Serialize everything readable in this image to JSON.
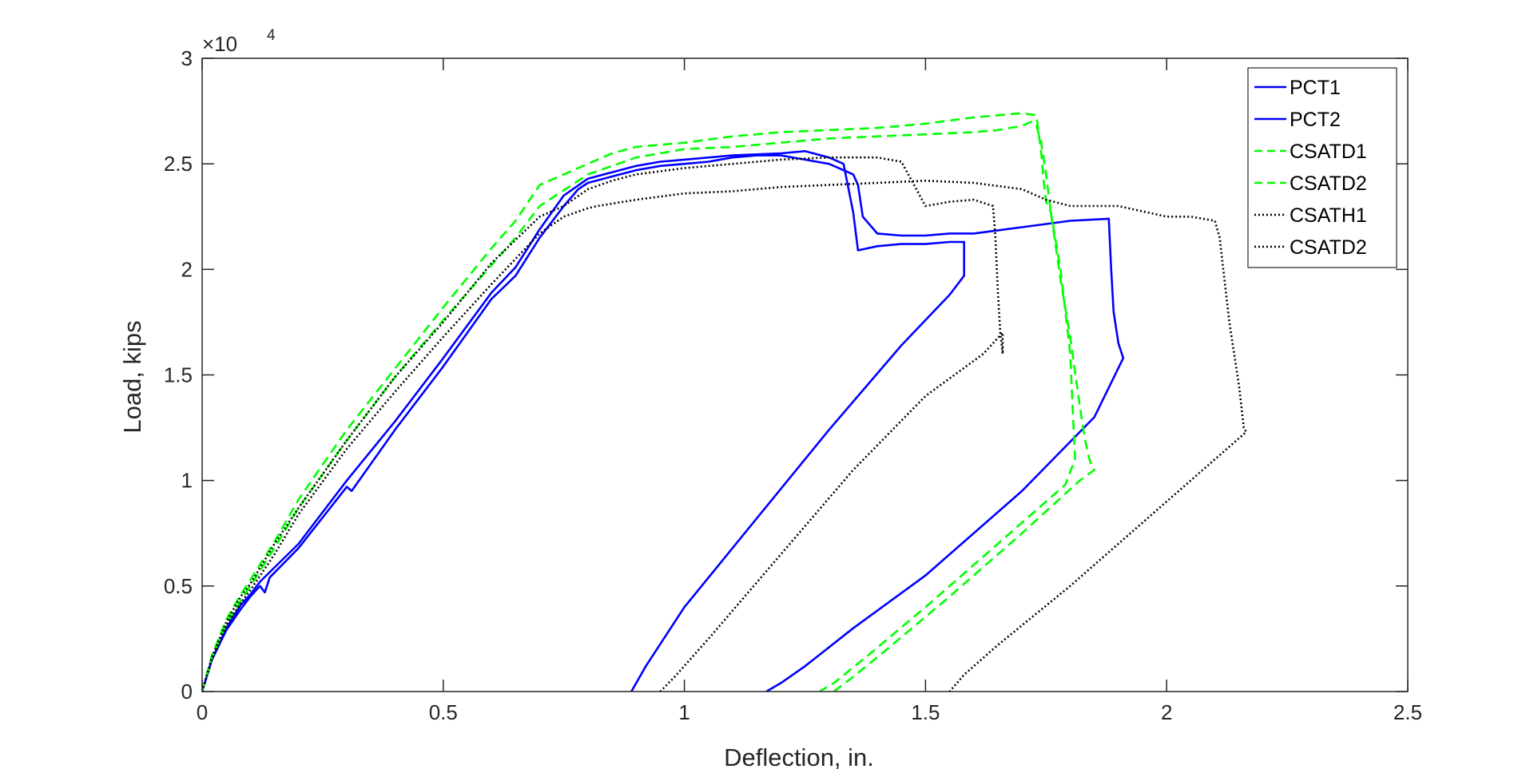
{
  "chart_data": {
    "type": "line",
    "title": "",
    "xlabel": "Deflection, in.",
    "ylabel": "Load, kips",
    "xlim": [
      0,
      2.5
    ],
    "ylim": [
      0,
      30000
    ],
    "x_ticks": [
      0,
      0.5,
      1,
      1.5,
      2,
      2.5
    ],
    "x_tick_labels": [
      "0",
      "0.5",
      "1",
      "1.5",
      "2",
      "2.5"
    ],
    "y_ticks": [
      0,
      5000,
      10000,
      15000,
      20000,
      25000,
      30000
    ],
    "y_tick_labels": [
      "0",
      "0.5",
      "1",
      "1.5",
      "2",
      "2.5",
      "3"
    ],
    "y_exponent_base": "×10",
    "y_exponent_power": "4",
    "grid": false,
    "legend_position": "top-right",
    "series": [
      {
        "name": "PCT1",
        "color": "#0000ff",
        "style": "solid",
        "x": [
          0,
          0.02,
          0.05,
          0.08,
          0.1,
          0.12,
          0.13,
          0.14,
          0.2,
          0.3,
          0.31,
          0.4,
          0.5,
          0.6,
          0.65,
          0.7,
          0.75,
          0.78,
          0.8,
          0.85,
          0.9,
          0.95,
          1.0,
          1.05,
          1.1,
          1.15,
          1.2,
          1.25,
          1.3,
          1.35,
          1.36,
          1.37,
          1.4,
          1.45,
          1.5,
          1.55,
          1.6,
          1.7,
          1.8,
          1.88,
          1.885,
          1.89,
          1.9,
          1.91,
          1.85,
          1.7,
          1.5,
          1.35,
          1.25,
          1.2,
          1.17
        ],
        "y": [
          0,
          1500,
          2900,
          3900,
          4500,
          5000,
          4700,
          5400,
          6800,
          9700,
          9500,
          12400,
          15400,
          18600,
          19700,
          21500,
          23000,
          23800,
          24100,
          24400,
          24700,
          24900,
          25000,
          25100,
          25300,
          25400,
          25400,
          25200,
          25000,
          24500,
          24000,
          22500,
          21700,
          21600,
          21600,
          21700,
          21700,
          22000,
          22300,
          22400,
          20000,
          18000,
          16500,
          15800,
          13000,
          9500,
          5500,
          3000,
          1200,
          400,
          0
        ]
      },
      {
        "name": "PCT2",
        "color": "#0000ff",
        "style": "solid",
        "x": [
          0,
          0.02,
          0.05,
          0.08,
          0.1,
          0.12,
          0.2,
          0.3,
          0.4,
          0.5,
          0.6,
          0.65,
          0.7,
          0.75,
          0.8,
          0.85,
          0.9,
          0.95,
          1.0,
          1.1,
          1.2,
          1.25,
          1.3,
          1.33,
          1.35,
          1.36,
          1.4,
          1.45,
          1.5,
          1.55,
          1.58,
          1.58,
          1.58,
          1.55,
          1.45,
          1.3,
          1.15,
          1.0,
          0.92,
          0.89
        ],
        "y": [
          0,
          1500,
          3000,
          4100,
          4600,
          5200,
          7000,
          10000,
          12800,
          15800,
          18900,
          20100,
          21900,
          23500,
          24300,
          24600,
          24900,
          25100,
          25200,
          25400,
          25500,
          25600,
          25300,
          25000,
          22700,
          20900,
          21100,
          21200,
          21200,
          21300,
          21300,
          20500,
          19700,
          18800,
          16400,
          12400,
          8200,
          4000,
          1200,
          0
        ]
      },
      {
        "name": "CSATD1",
        "color": "#00ff00",
        "style": "dashed",
        "x": [
          0,
          0.02,
          0.05,
          0.08,
          0.1,
          0.15,
          0.2,
          0.3,
          0.4,
          0.5,
          0.6,
          0.65,
          0.7,
          0.8,
          0.9,
          1.0,
          1.1,
          1.2,
          1.3,
          1.4,
          1.5,
          1.6,
          1.65,
          1.7,
          1.72,
          1.73,
          1.74,
          1.75,
          1.76,
          1.78,
          1.8,
          1.82,
          1.83,
          1.84,
          1.845,
          1.85,
          1.82,
          1.7,
          1.55,
          1.42,
          1.35,
          1.31
        ],
        "y": [
          0,
          1600,
          3200,
          4300,
          5000,
          6800,
          8700,
          11900,
          14900,
          17600,
          20200,
          21500,
          23000,
          24500,
          25300,
          25700,
          25800,
          26000,
          26200,
          26300,
          26400,
          26500,
          26600,
          26800,
          27000,
          26800,
          26000,
          24500,
          22700,
          19500,
          16800,
          13500,
          12000,
          11000,
          10700,
          10500,
          10000,
          7500,
          4500,
          2000,
          700,
          0
        ]
      },
      {
        "name": "CSATD2",
        "color": "#00ff00",
        "style": "dashed",
        "x": [
          0,
          0.02,
          0.05,
          0.08,
          0.1,
          0.15,
          0.2,
          0.3,
          0.4,
          0.5,
          0.6,
          0.65,
          0.7,
          0.75,
          0.8,
          0.85,
          0.9,
          1.0,
          1.1,
          1.2,
          1.3,
          1.4,
          1.5,
          1.6,
          1.65,
          1.7,
          1.73,
          1.74,
          1.745,
          1.75,
          1.76,
          1.78,
          1.8,
          1.81,
          1.79,
          1.65,
          1.5,
          1.38,
          1.31,
          1.28
        ],
        "y": [
          0,
          1700,
          3400,
          4600,
          5300,
          7100,
          9100,
          12400,
          15300,
          18200,
          21000,
          22300,
          24000,
          24500,
          25000,
          25500,
          25800,
          26000,
          26300,
          26500,
          26600,
          26700,
          26900,
          27200,
          27300,
          27400,
          27300,
          25500,
          24200,
          23200,
          22700,
          20000,
          16000,
          11000,
          9800,
          7000,
          4000,
          1700,
          400,
          0
        ]
      },
      {
        "name": "CSATH1",
        "color": "#000000",
        "style": "dotted",
        "x": [
          0,
          0.02,
          0.05,
          0.08,
          0.1,
          0.15,
          0.2,
          0.3,
          0.4,
          0.5,
          0.6,
          0.7,
          0.75,
          0.8,
          0.85,
          0.9,
          1.0,
          1.1,
          1.2,
          1.3,
          1.4,
          1.45,
          1.5,
          1.55,
          1.6,
          1.64,
          1.645,
          1.65,
          1.655,
          1.66,
          1.66,
          1.62,
          1.5,
          1.35,
          1.2,
          1.05,
          0.98,
          0.95
        ],
        "y": [
          0,
          1600,
          3300,
          4500,
          5100,
          7000,
          8700,
          11900,
          14900,
          17500,
          20300,
          22500,
          23000,
          23800,
          24200,
          24500,
          24800,
          25000,
          25200,
          25300,
          25300,
          25100,
          23000,
          23200,
          23300,
          23000,
          21500,
          19000,
          17000,
          16000,
          17000,
          16000,
          14000,
          10500,
          6500,
          2500,
          700,
          0
        ]
      },
      {
        "name": "CSATD2",
        "color": "#000000",
        "style": "dotted",
        "x": [
          0,
          0.02,
          0.05,
          0.08,
          0.1,
          0.15,
          0.2,
          0.3,
          0.4,
          0.5,
          0.6,
          0.7,
          0.75,
          0.8,
          0.82,
          0.9,
          1.0,
          1.1,
          1.2,
          1.3,
          1.4,
          1.5,
          1.6,
          1.7,
          1.75,
          1.8,
          1.9,
          2.0,
          2.05,
          2.1,
          2.11,
          2.12,
          2.13,
          2.15,
          2.16,
          2.165,
          2.1,
          1.95,
          1.8,
          1.65,
          1.58,
          1.55
        ],
        "y": [
          0,
          1500,
          3100,
          4200,
          4800,
          6500,
          8400,
          11500,
          14200,
          16800,
          19300,
          21700,
          22500,
          22900,
          23000,
          23300,
          23600,
          23700,
          23900,
          24000,
          24100,
          24200,
          24100,
          23800,
          23300,
          23000,
          23000,
          22500,
          22500,
          22300,
          21500,
          19500,
          17500,
          14500,
          12500,
          12300,
          11000,
          8000,
          5000,
          2200,
          800,
          0
        ]
      }
    ]
  }
}
